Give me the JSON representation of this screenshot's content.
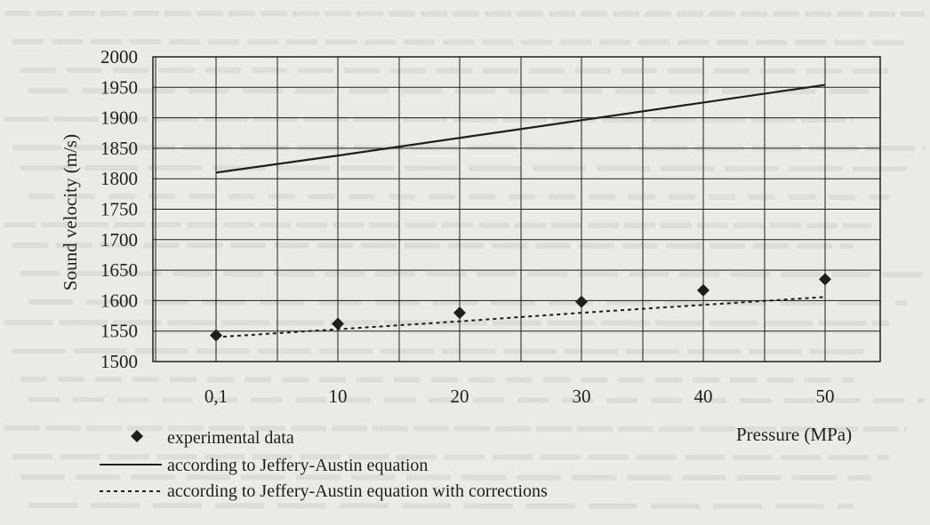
{
  "chart_data": {
    "type": "line",
    "ylabel": "Sound velocity (m/s)",
    "xlabel": "Pressure (MPa)",
    "categories": [
      "0,1",
      "10",
      "20",
      "30",
      "40",
      "50"
    ],
    "ylim": [
      1500,
      2000
    ],
    "yticks": [
      1500,
      1550,
      1600,
      1650,
      1700,
      1750,
      1800,
      1850,
      1900,
      1950,
      2000
    ],
    "grid": true,
    "legend_position": "bottom-left",
    "series": [
      {
        "name": "experimental data",
        "style": "diamond-marker",
        "values": [
          1543,
          1562,
          1580,
          1598,
          1617,
          1635
        ]
      },
      {
        "name": "according to Jeffery-Austin equation",
        "style": "solid",
        "values": [
          1810,
          1838,
          1867,
          1896,
          1925,
          1954
        ]
      },
      {
        "name": "according to Jeffery-Austin equation with corrections",
        "style": "dashed",
        "values": [
          1540,
          1553,
          1566,
          1580,
          1593,
          1606
        ]
      }
    ]
  },
  "colors": {
    "ink": "#1e1e1e",
    "paper": "#ebeae5"
  }
}
